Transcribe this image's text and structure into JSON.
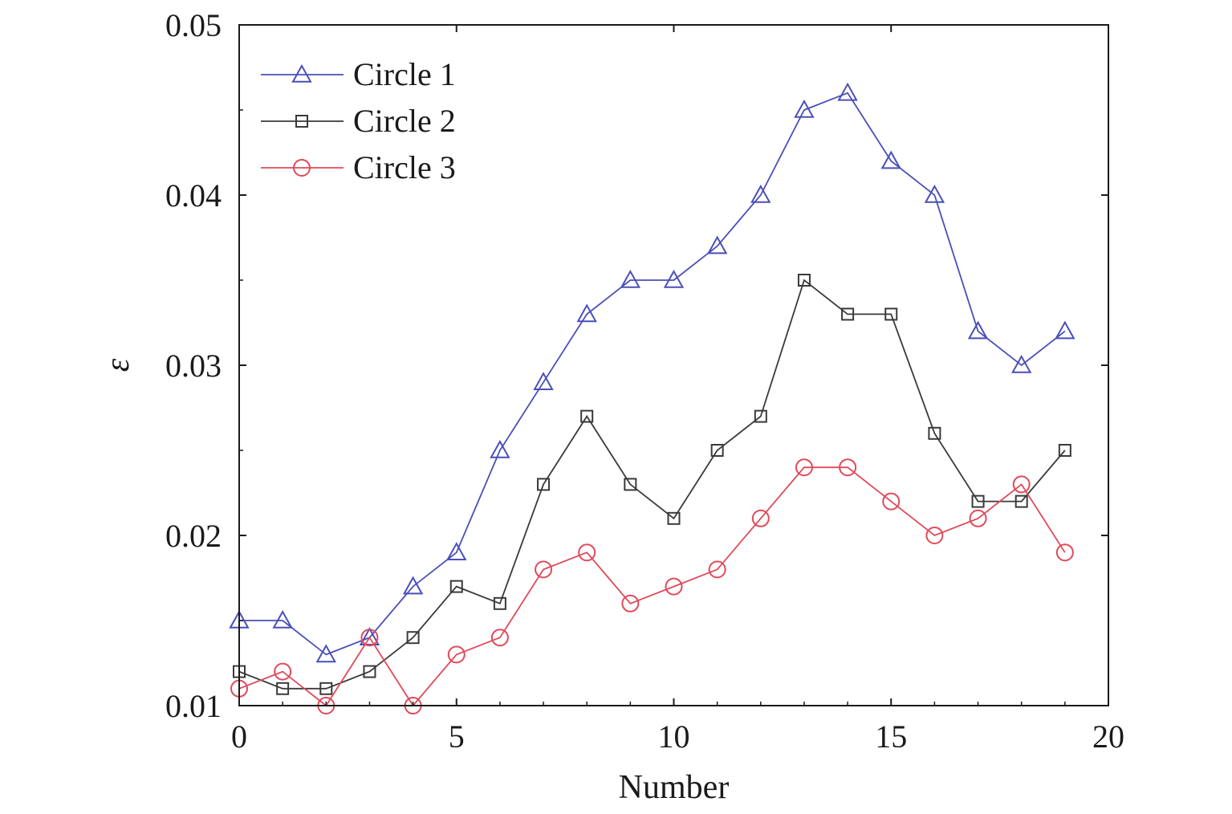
{
  "chart_data": {
    "type": "line",
    "title": "",
    "xlabel": "Number",
    "ylabel": "ε",
    "xlim": [
      0,
      20
    ],
    "ylim": [
      0.01,
      0.05
    ],
    "xticks": [
      0,
      5,
      10,
      15,
      20
    ],
    "xtick_labels": [
      "0",
      "5",
      "10",
      "15",
      "20"
    ],
    "yticks": [
      0.01,
      0.02,
      0.03,
      0.04,
      0.05
    ],
    "ytick_labels": [
      "0.01",
      "0.02",
      "0.03",
      "0.04",
      "0.05"
    ],
    "grid": false,
    "legend_position": "top-left",
    "x": [
      0,
      1,
      2,
      3,
      4,
      5,
      6,
      7,
      8,
      9,
      10,
      11,
      12,
      13,
      14,
      15,
      16,
      17,
      18,
      19
    ],
    "series": [
      {
        "name": "Circle 1",
        "marker": "triangle",
        "color": "#4a4fb8",
        "values": [
          0.015,
          0.015,
          0.013,
          0.014,
          0.017,
          0.019,
          0.025,
          0.029,
          0.033,
          0.035,
          0.035,
          0.037,
          0.04,
          0.045,
          0.046,
          0.042,
          0.04,
          0.032,
          0.03,
          0.032
        ]
      },
      {
        "name": "Circle 2",
        "marker": "square",
        "color": "#3a3a3a",
        "values": [
          0.012,
          0.011,
          0.011,
          0.012,
          0.014,
          0.017,
          0.016,
          0.023,
          0.027,
          0.023,
          0.021,
          0.025,
          0.027,
          0.035,
          0.033,
          0.033,
          0.026,
          0.022,
          0.022,
          0.025
        ]
      },
      {
        "name": "Circle 3",
        "marker": "circle",
        "color": "#e04a5a",
        "values": [
          0.011,
          0.012,
          0.01,
          0.014,
          0.01,
          0.013,
          0.014,
          0.018,
          0.019,
          0.016,
          0.017,
          0.018,
          0.021,
          0.024,
          0.024,
          0.022,
          0.02,
          0.021,
          0.023,
          0.019
        ]
      }
    ]
  }
}
